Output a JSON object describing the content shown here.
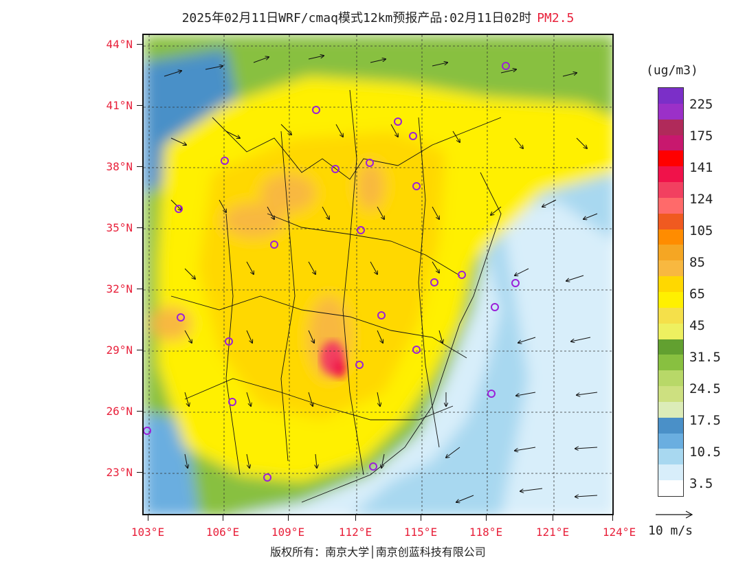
{
  "header": {
    "title": "2025年02月11日WRF/cmaq模式12km预报产品:02月11日02时",
    "pollutant": "PM2.5",
    "pollutant_color": "#e8203a"
  },
  "axes": {
    "lat_labels": [
      "44°N",
      "41°N",
      "38°N",
      "35°N",
      "32°N",
      "29°N",
      "26°N",
      "23°N"
    ],
    "lon_labels": [
      "103°E",
      "106°E",
      "109°E",
      "112°E",
      "115°E",
      "118°E",
      "121°E",
      "124°E"
    ],
    "label_color": "#e8203a"
  },
  "legend": {
    "unit": "(ug/m3)",
    "labels": [
      "225",
      "175",
      "141",
      "124",
      "105",
      "85",
      "65",
      "45",
      "31.5",
      "24.5",
      "17.5",
      "10.5",
      "3.5"
    ],
    "colors": [
      "#7b2fc8",
      "#9b30c8",
      "#b02a5a",
      "#c8186e",
      "#ff0000",
      "#f0124a",
      "#f24060",
      "#ff6a6a",
      "#f05a20",
      "#ff8c00",
      "#f5a623",
      "#f8b840",
      "#ffd800",
      "#fff000",
      "#f5e04a",
      "#eef060",
      "#62a030",
      "#88c040",
      "#b8d868",
      "#cde080",
      "#dcecb8",
      "#4a90c8",
      "#6aaee0",
      "#a8d8f0",
      "#d8eefa",
      "#ffffff"
    ]
  },
  "wind_scale": {
    "label": "10 m/s"
  },
  "footer": {
    "text": "版权所有：南京大学│南京创蓝科技有限公司"
  },
  "city_markers_color": "#9a20d8"
}
